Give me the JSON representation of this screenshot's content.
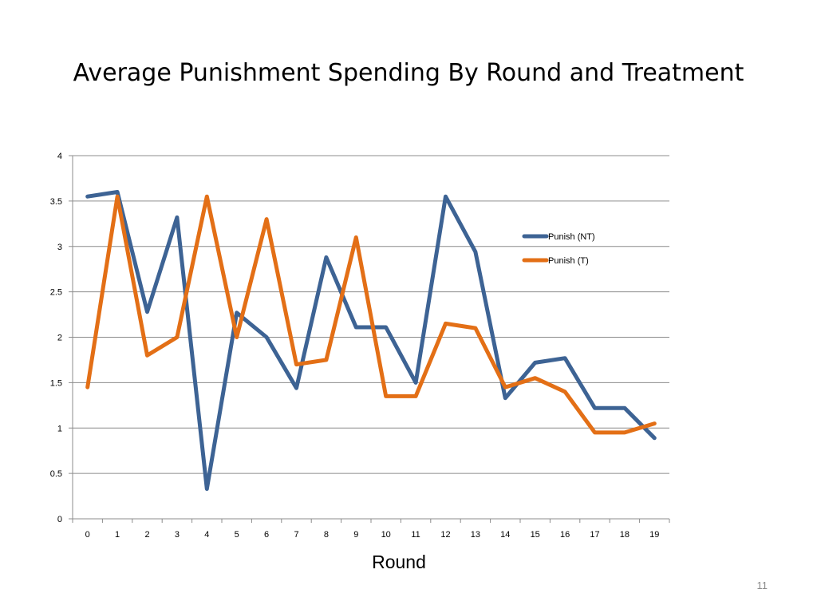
{
  "slide": {
    "title": "Average Punishment Spending By Round and Treatment",
    "page_number": "11"
  },
  "chart_data": {
    "type": "line",
    "title": "",
    "xlabel": "Round",
    "ylabel": "",
    "categories": [
      "0",
      "1",
      "2",
      "3",
      "4",
      "5",
      "6",
      "7",
      "8",
      "9",
      "10",
      "11",
      "12",
      "13",
      "14",
      "15",
      "16",
      "17",
      "18",
      "19"
    ],
    "ylim": [
      0,
      4
    ],
    "yticks": [
      "0",
      "0.5",
      "1",
      "1.5",
      "2",
      "2.5",
      "3",
      "3.5",
      "4"
    ],
    "grid": true,
    "legend_position": "right",
    "series": [
      {
        "name": "Punish (NT)",
        "color": "#3d6394",
        "values": [
          3.55,
          3.6,
          2.28,
          3.32,
          0.33,
          2.27,
          2.0,
          1.44,
          2.88,
          2.11,
          2.11,
          1.5,
          3.55,
          2.94,
          1.33,
          1.72,
          1.77,
          1.22,
          1.22,
          0.89
        ]
      },
      {
        "name": "Punish (T)",
        "color": "#e36f16",
        "values": [
          1.45,
          3.55,
          1.8,
          2.0,
          3.55,
          2.0,
          3.3,
          1.7,
          1.75,
          3.1,
          1.35,
          1.35,
          2.15,
          2.1,
          1.45,
          1.55,
          1.4,
          0.95,
          0.95,
          1.05
        ]
      }
    ]
  }
}
